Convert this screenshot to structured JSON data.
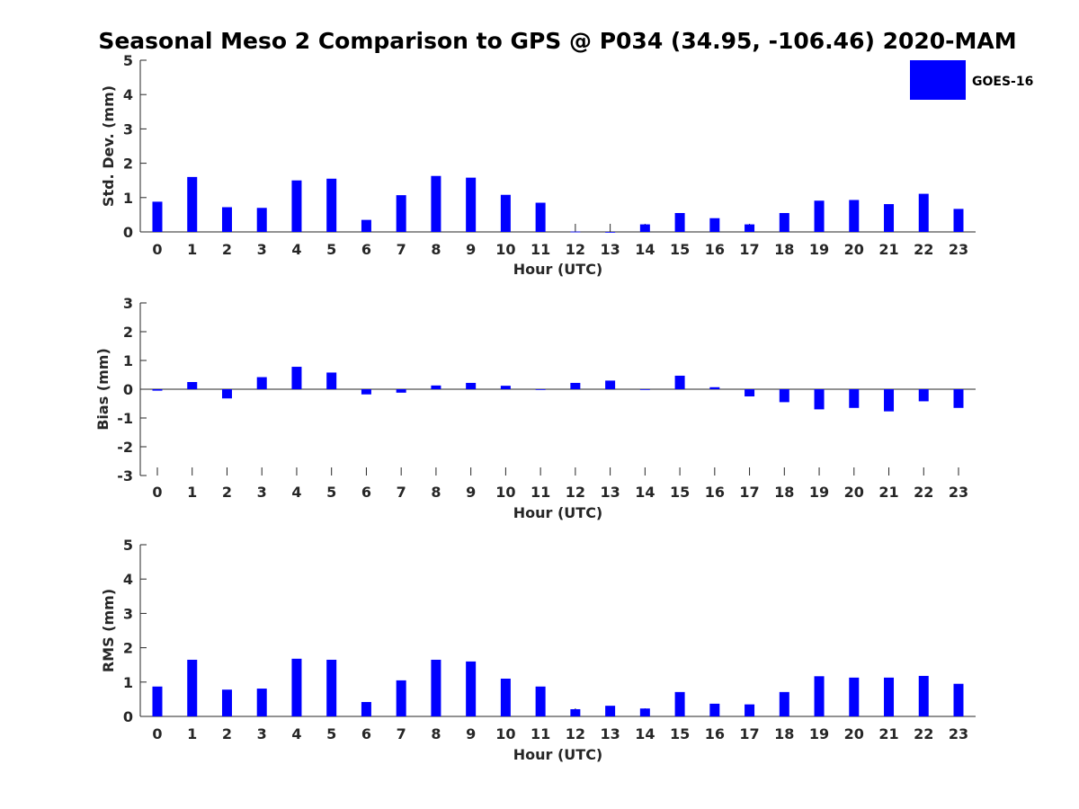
{
  "chart_data": {
    "type": "bar",
    "title": "Seasonal Meso 2 Comparison to GPS @ P034 (34.95, -106.46) 2020-MAM",
    "categories": [
      "0",
      "1",
      "2",
      "3",
      "4",
      "5",
      "6",
      "7",
      "8",
      "9",
      "10",
      "11",
      "12",
      "13",
      "14",
      "15",
      "16",
      "17",
      "18",
      "19",
      "20",
      "21",
      "22",
      "23"
    ],
    "legend": {
      "label": "GOES-16",
      "color": "#0000ff",
      "placement": "top-right"
    },
    "panels": [
      {
        "id": "std",
        "ylabel": "Std. Dev. (mm)",
        "xlabel": "Hour (UTC)",
        "ylim": [
          0,
          5
        ],
        "yticks": [
          0,
          1,
          2,
          3,
          4,
          5
        ],
        "series": [
          {
            "name": "GOES-16",
            "values": [
              0.88,
              1.6,
              0.72,
              0.7,
              1.5,
              1.55,
              0.35,
              1.07,
              1.63,
              1.58,
              1.08,
              0.85,
              0.01,
              0.0,
              0.22,
              0.55,
              0.4,
              0.22,
              0.55,
              0.91,
              0.93,
              0.81,
              1.11,
              0.67
            ]
          }
        ]
      },
      {
        "id": "bias",
        "ylabel": "Bias (mm)",
        "xlabel": "Hour (UTC)",
        "ylim": [
          -3,
          3
        ],
        "yticks": [
          -3,
          -2,
          -1,
          0,
          1,
          2,
          3
        ],
        "series": [
          {
            "name": "GOES-16",
            "values": [
              -0.05,
              0.25,
              -0.32,
              0.42,
              0.78,
              0.58,
              -0.18,
              -0.12,
              0.13,
              0.22,
              0.12,
              -0.02,
              0.22,
              0.3,
              0.0,
              0.47,
              0.07,
              -0.25,
              -0.45,
              -0.7,
              -0.65,
              -0.77,
              -0.42,
              -0.65
            ]
          }
        ]
      },
      {
        "id": "rms",
        "ylabel": "RMS (mm)",
        "xlabel": "Hour (UTC)",
        "ylim": [
          0,
          5
        ],
        "yticks": [
          0,
          1,
          2,
          3,
          4,
          5
        ],
        "series": [
          {
            "name": "GOES-16",
            "values": [
              0.87,
              1.65,
              0.78,
              0.81,
              1.68,
              1.65,
              0.42,
              1.05,
              1.65,
              1.6,
              1.1,
              0.87,
              0.21,
              0.31,
              0.23,
              0.71,
              0.37,
              0.35,
              0.71,
              1.17,
              1.13,
              1.13,
              1.18,
              0.95
            ]
          }
        ]
      }
    ]
  }
}
